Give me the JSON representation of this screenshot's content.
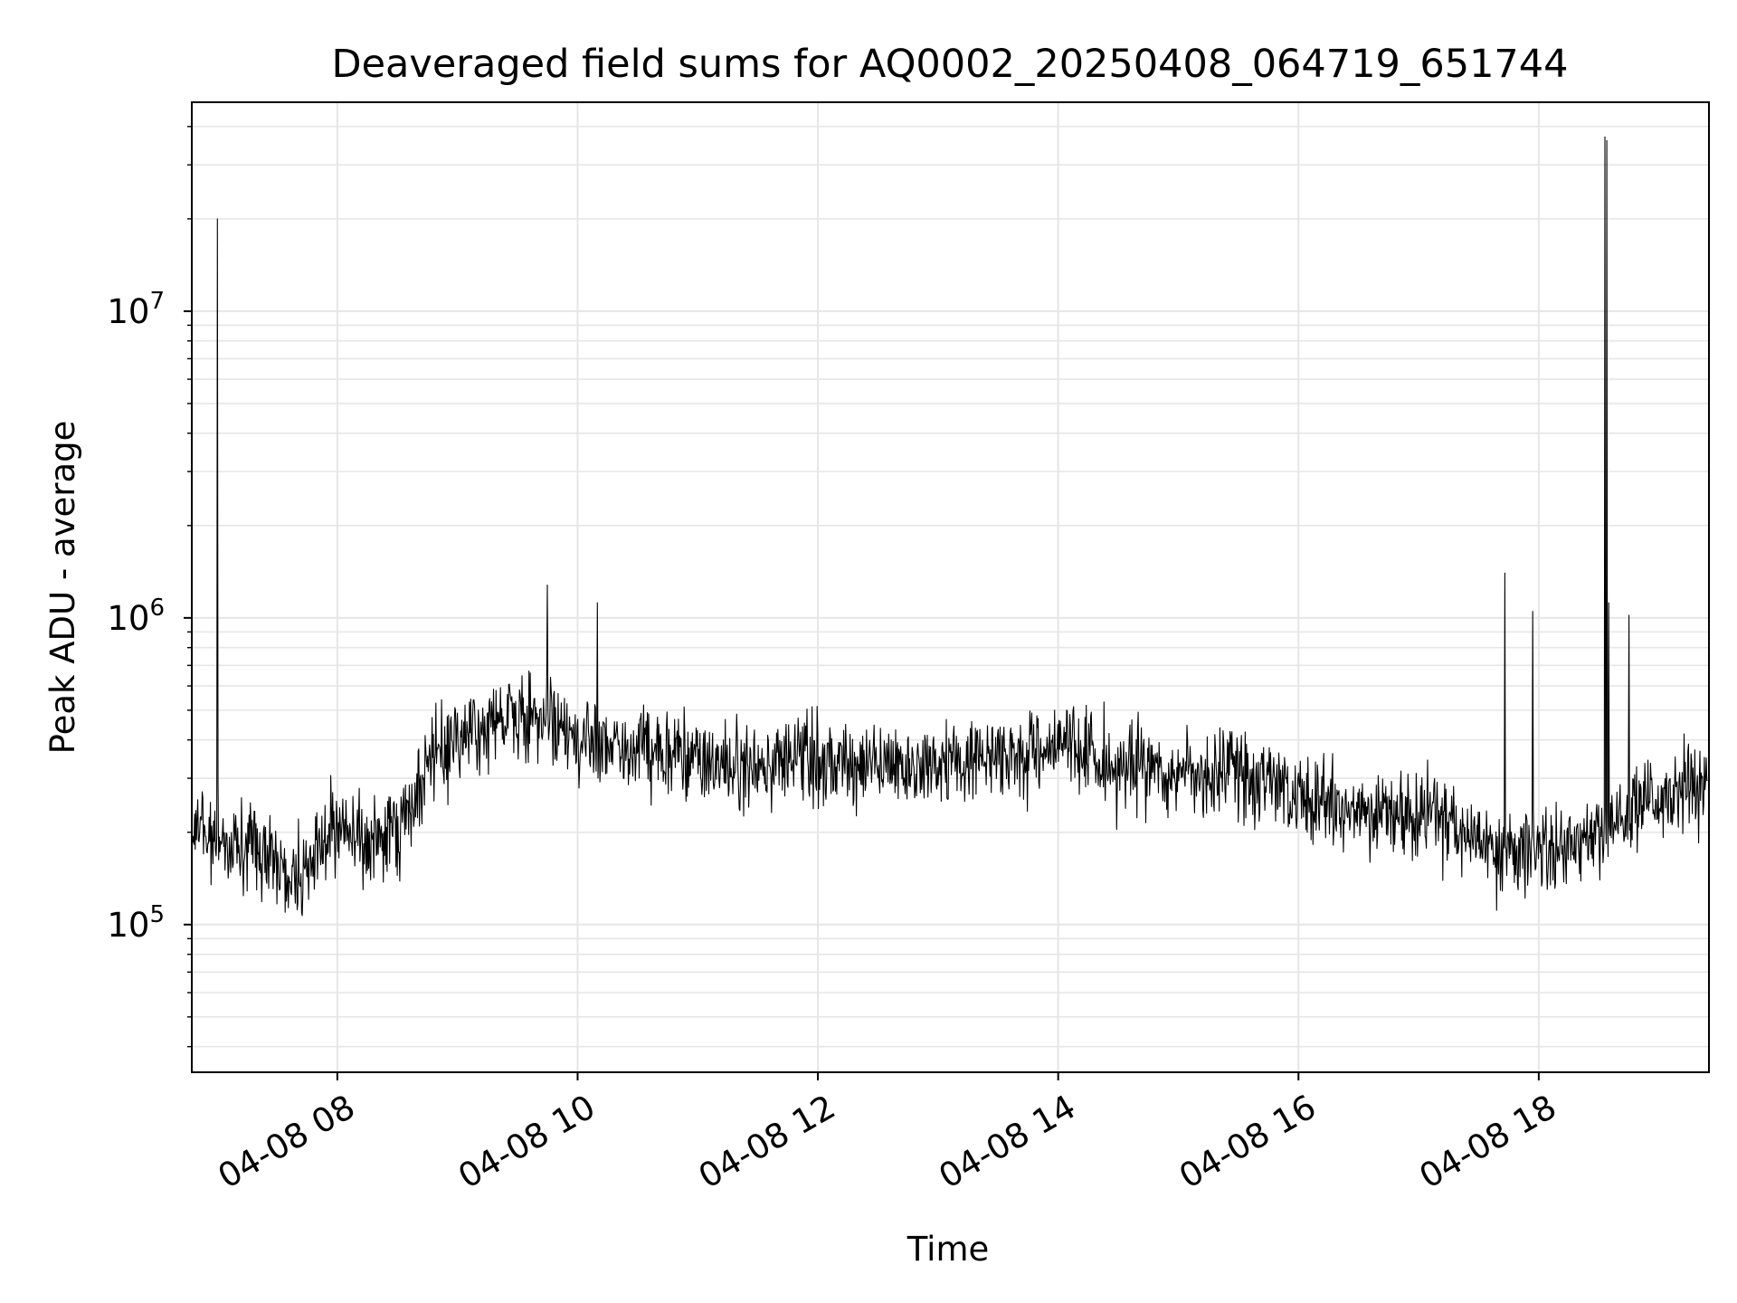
{
  "chart_data": {
    "type": "line",
    "title": "Deaveraged field sums for AQ0002_20250408_064719_651744",
    "xlabel": "Time",
    "ylabel": "Peak ADU - average",
    "x_scale": "time",
    "y_scale": "log",
    "xlim": [
      "2025-04-08T06:47:19",
      "2025-04-08T19:25:00"
    ],
    "ylim": [
      33000,
      48000000
    ],
    "grid": true,
    "line_color": "#000000",
    "grid_color": "#e6e6e6",
    "x_tick_labels": [
      "04-08 08",
      "04-08 10",
      "04-08 12",
      "04-08 14",
      "04-08 16",
      "04-08 18"
    ],
    "y_tick_labels": [
      {
        "base": "10",
        "exp": "5"
      },
      {
        "base": "10",
        "exp": "6"
      },
      {
        "base": "10",
        "exp": "7"
      }
    ],
    "series": [
      {
        "x": [
          "2025-04-08T06:47:19",
          "2025-04-08T07:00:00",
          "2025-04-08T07:15:00",
          "2025-04-08T07:30:00",
          "2025-04-08T07:45:00",
          "2025-04-08T08:00:00",
          "2025-04-08T08:15:00",
          "2025-04-08T08:30:00",
          "2025-04-08T08:45:00",
          "2025-04-08T09:00:00",
          "2025-04-08T09:15:00",
          "2025-04-08T09:30:00",
          "2025-04-08T09:45:00",
          "2025-04-08T10:00:00",
          "2025-04-08T10:15:00",
          "2025-04-08T10:30:00",
          "2025-04-08T10:45:00",
          "2025-04-08T11:00:00",
          "2025-04-08T11:15:00",
          "2025-04-08T11:30:00",
          "2025-04-08T11:45:00",
          "2025-04-08T12:00:00",
          "2025-04-08T12:15:00",
          "2025-04-08T12:30:00",
          "2025-04-08T12:45:00",
          "2025-04-08T13:00:00",
          "2025-04-08T13:15:00",
          "2025-04-08T13:30:00",
          "2025-04-08T13:45:00",
          "2025-04-08T14:00:00",
          "2025-04-08T14:15:00",
          "2025-04-08T14:30:00",
          "2025-04-08T14:45:00",
          "2025-04-08T15:00:00",
          "2025-04-08T15:15:00",
          "2025-04-08T15:30:00",
          "2025-04-08T15:45:00",
          "2025-04-08T16:00:00",
          "2025-04-08T16:15:00",
          "2025-04-08T16:30:00",
          "2025-04-08T16:45:00",
          "2025-04-08T17:00:00",
          "2025-04-08T17:15:00",
          "2025-04-08T17:30:00",
          "2025-04-08T17:45:00",
          "2025-04-08T18:00:00",
          "2025-04-08T18:15:00",
          "2025-04-08T18:30:00",
          "2025-04-08T18:45:00",
          "2025-04-08T19:00:00",
          "2025-04-08T19:15:00",
          "2025-04-08T19:25:00"
        ],
        "values": [
          220000,
          190000,
          180000,
          160000,
          140000,
          220000,
          180000,
          200000,
          330000,
          400000,
          450000,
          480000,
          480000,
          420000,
          400000,
          380000,
          360000,
          340000,
          330000,
          330000,
          340000,
          340000,
          330000,
          320000,
          330000,
          330000,
          350000,
          350000,
          360000,
          380000,
          360000,
          330000,
          320000,
          310000,
          310000,
          300000,
          280000,
          260000,
          240000,
          240000,
          240000,
          230000,
          220000,
          190000,
          170000,
          170000,
          180000,
          200000,
          230000,
          260000,
          280000,
          300000
        ]
      }
    ],
    "spikes": [
      {
        "x": "2025-04-08T07:00:00",
        "value": 20000000
      },
      {
        "x": "2025-04-08T09:45:00",
        "value": 1280000
      },
      {
        "x": "2025-04-08T10:10:00",
        "value": 1120000
      },
      {
        "x": "2025-04-08T17:43:00",
        "value": 1400000
      },
      {
        "x": "2025-04-08T17:57:00",
        "value": 1050000
      },
      {
        "x": "2025-04-08T18:33:00",
        "value": 37000000
      },
      {
        "x": "2025-04-08T18:34:00",
        "value": 36000000
      },
      {
        "x": "2025-04-08T18:35:00",
        "value": 1120000
      },
      {
        "x": "2025-04-08T18:45:00",
        "value": 1020000
      }
    ]
  }
}
